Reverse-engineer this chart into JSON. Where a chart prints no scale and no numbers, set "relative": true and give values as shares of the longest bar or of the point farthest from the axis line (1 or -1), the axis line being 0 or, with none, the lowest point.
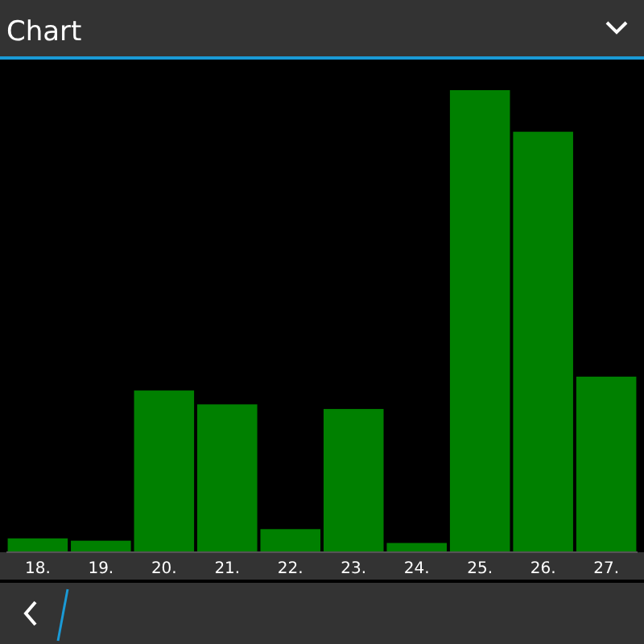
{
  "chart_data": {
    "type": "bar",
    "title": "Chart",
    "categories": [
      "18.",
      "19.",
      "20.",
      "21.",
      "22.",
      "23.",
      "24.",
      "25.",
      "26.",
      "27."
    ],
    "values": [
      0.03,
      0.025,
      0.35,
      0.32,
      0.05,
      0.31,
      0.02,
      1,
      0.91,
      0.38
    ],
    "color": "#008000",
    "relative": true
  }
}
